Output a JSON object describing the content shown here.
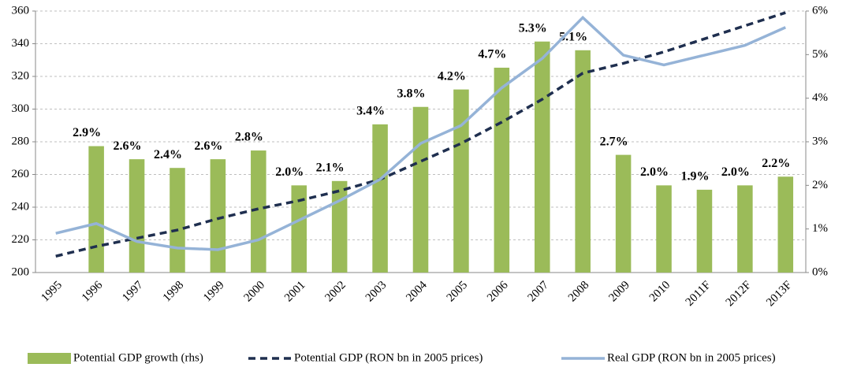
{
  "chart_data": {
    "type": "combo",
    "categories": [
      "1995",
      "1996",
      "1997",
      "1998",
      "1999",
      "2000",
      "2001",
      "2002",
      "2003",
      "2004",
      "2005",
      "2006",
      "2007",
      "2008",
      "2009",
      "2010",
      "2011F",
      "2012F",
      "2013F"
    ],
    "series": [
      {
        "name": "Potential GDP growth (rhs)",
        "type": "bar",
        "axis": "y2",
        "color": "#9bbb59",
        "values": [
          null,
          2.9,
          2.6,
          2.4,
          2.6,
          2.8,
          2.0,
          2.1,
          3.4,
          3.8,
          4.2,
          4.7,
          5.3,
          5.1,
          2.7,
          2.0,
          1.9,
          2.0,
          2.2
        ],
        "value_labels": [
          null,
          "2.9%",
          "2.6%",
          "2.4%",
          "2.6%",
          "2.8%",
          "2.0%",
          "2.1%",
          "3.4%",
          "3.8%",
          "4.2%",
          "4.7%",
          "5.3%",
          "5.1%",
          "2.7%",
          "2.0%",
          "1.9%",
          "2.0%",
          "2.2%"
        ]
      },
      {
        "name": "Potential GDP (RON bn in 2005 prices)",
        "type": "line",
        "dashed": true,
        "color": "#1f2f4f",
        "values": [
          210,
          216,
          221,
          226,
          233,
          239,
          244,
          250,
          257,
          268,
          279,
          292,
          306,
          322,
          328,
          335,
          343,
          351,
          359
        ]
      },
      {
        "name": "Real GDP (RON bn in 2005 prices)",
        "type": "line",
        "dashed": false,
        "color": "#95b3d7",
        "values": [
          224,
          230,
          219,
          215,
          214,
          220,
          232,
          244,
          257,
          279,
          290,
          313,
          331,
          356,
          333,
          327,
          333,
          339,
          350
        ]
      }
    ],
    "ylim": [
      200,
      360
    ],
    "yticks": [
      200,
      220,
      240,
      260,
      280,
      300,
      320,
      340,
      360
    ],
    "y2lim": [
      0,
      6
    ],
    "y2ticks": [
      {
        "value": 0,
        "label": "0%"
      },
      {
        "value": 1,
        "label": "1%"
      },
      {
        "value": 2,
        "label": "2%"
      },
      {
        "value": 3,
        "label": "3%"
      },
      {
        "value": 4,
        "label": "4%"
      },
      {
        "value": 5,
        "label": "5%"
      },
      {
        "value": 6,
        "label": "6%"
      }
    ],
    "grid": true
  }
}
